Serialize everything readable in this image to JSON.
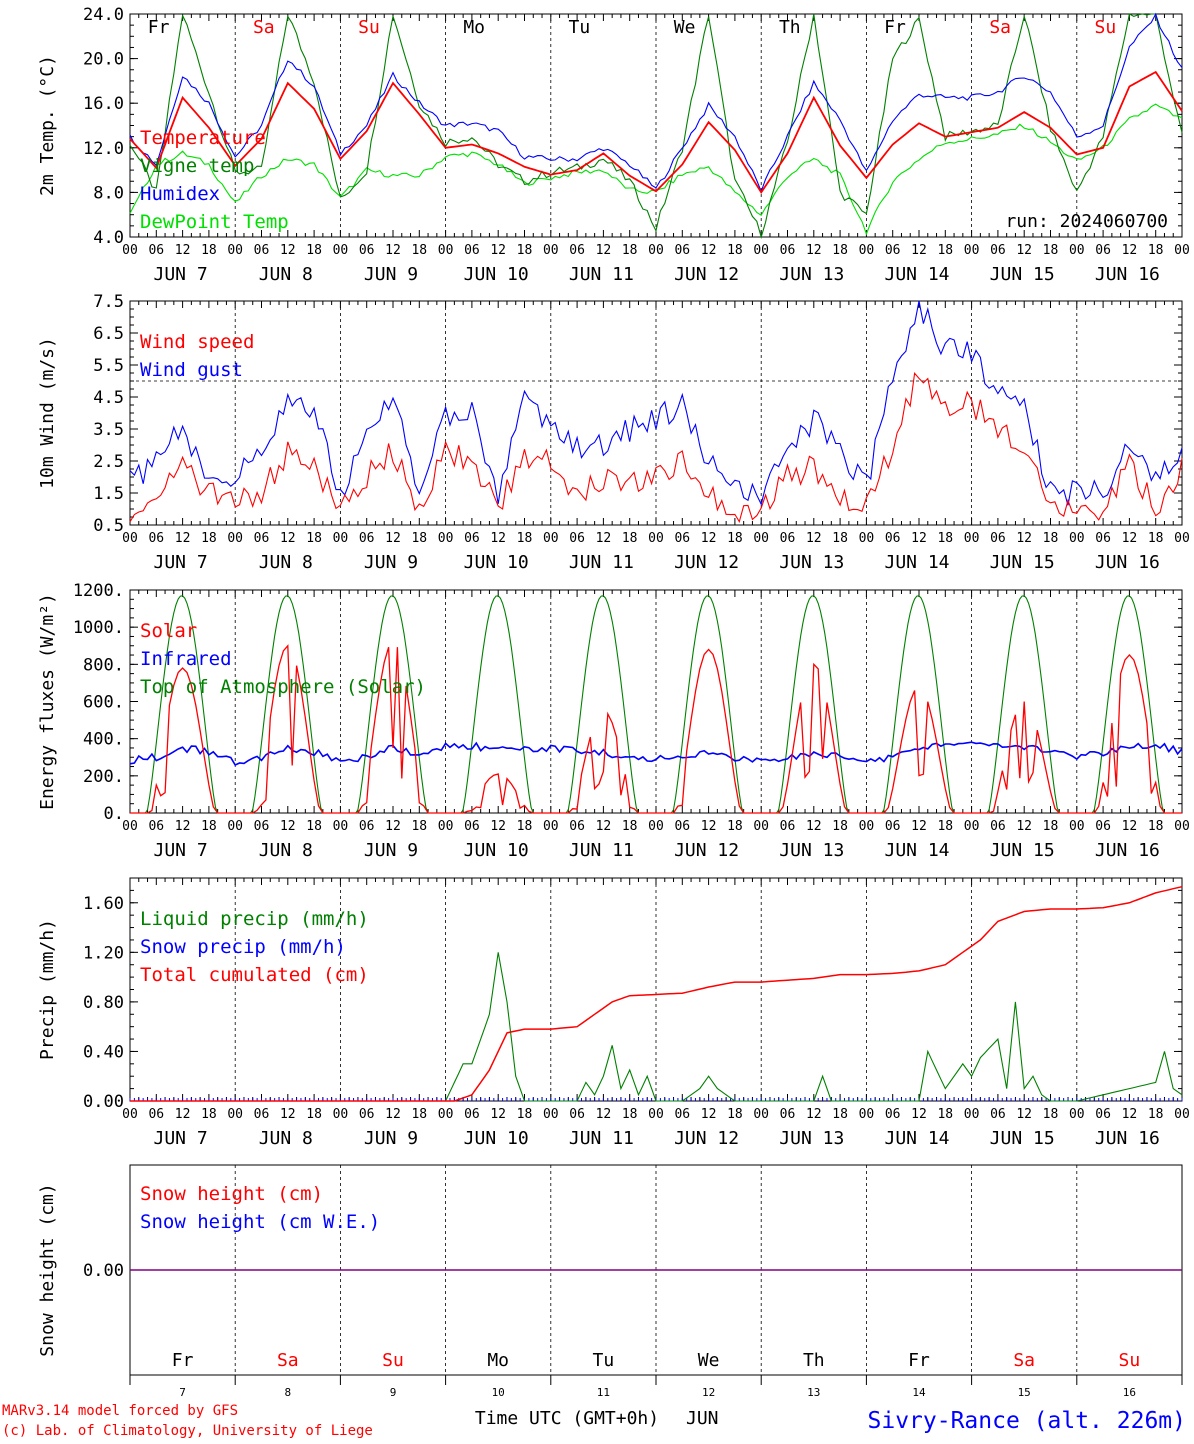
{
  "chart_data": [
    {
      "type": "line",
      "id": "temp",
      "ylabel": "2m Temp. (°C)",
      "ylim": [
        4.0,
        24.0
      ],
      "yticks": [
        "4.0",
        "8.0",
        "12.0",
        "16.0",
        "20.0",
        "24.0"
      ],
      "run_label": "run: 2024060700",
      "legend_placement": "left",
      "series": [
        {
          "name": "Temperature",
          "color": "#ff0000",
          "x_hours": [
            0,
            6,
            12,
            18,
            24,
            30,
            36,
            42,
            48,
            54,
            60,
            66,
            72,
            78,
            84,
            90,
            96,
            102,
            108,
            114,
            120,
            126,
            132,
            138,
            144,
            150,
            156,
            162,
            168,
            174,
            180,
            186,
            192,
            198,
            204,
            210,
            216,
            222,
            228,
            234,
            240
          ],
          "values": [
            12.8,
            10.2,
            16.5,
            13.8,
            10.4,
            12.8,
            17.8,
            15.5,
            11.0,
            13.5,
            17.8,
            15.0,
            12.0,
            12.3,
            11.5,
            10.3,
            9.6,
            10.0,
            11.5,
            9.5,
            8.1,
            10.5,
            14.3,
            11.8,
            8.0,
            11.5,
            16.5,
            12.2,
            9.3,
            12.3,
            14.2,
            13.0,
            13.4,
            13.8,
            15.2,
            13.8,
            11.4,
            12.0,
            17.5,
            18.8,
            15.3
          ]
        },
        {
          "name": "Vigne temp",
          "color": "#008000",
          "x_hours": [
            0,
            6,
            12,
            18,
            24,
            30,
            36,
            42,
            48,
            54,
            60,
            66,
            72,
            78,
            84,
            90,
            96,
            102,
            108,
            114,
            120,
            126,
            132,
            138,
            144,
            150,
            156,
            162,
            168,
            174,
            180,
            186,
            192,
            198,
            204,
            210,
            216,
            222,
            228,
            234,
            240
          ],
          "values": [
            12.5,
            8.0,
            24.0,
            17.0,
            9.8,
            10.0,
            24.0,
            18.0,
            7.3,
            10.0,
            24.0,
            16.0,
            12.5,
            13.0,
            10.5,
            9.0,
            9.8,
            10.2,
            11.0,
            9.0,
            4.8,
            12.0,
            24.0,
            9.0,
            4.3,
            12.5,
            24.0,
            8.0,
            6.0,
            20.0,
            23.5,
            13.0,
            13.5,
            14.0,
            24.0,
            13.8,
            8.0,
            13.0,
            24.0,
            24.0,
            13.0
          ]
        },
        {
          "name": "Humidex",
          "color": "#0000ff",
          "x_hours": [
            0,
            6,
            12,
            18,
            24,
            30,
            36,
            42,
            48,
            54,
            60,
            66,
            72,
            78,
            84,
            90,
            96,
            102,
            108,
            114,
            120,
            126,
            132,
            138,
            144,
            150,
            156,
            162,
            168,
            174,
            180,
            186,
            192,
            198,
            204,
            210,
            216,
            222,
            228,
            234,
            240
          ],
          "values": [
            13.0,
            10.5,
            18.5,
            16.0,
            11.2,
            14.0,
            20.0,
            17.5,
            11.5,
            14.0,
            18.5,
            16.0,
            14.0,
            14.2,
            13.5,
            11.2,
            11.0,
            11.0,
            12.0,
            10.5,
            8.3,
            12.0,
            15.8,
            13.0,
            8.2,
            13.0,
            17.8,
            14.5,
            9.8,
            14.5,
            16.8,
            16.5,
            16.5,
            17.0,
            18.5,
            17.0,
            13.0,
            14.0,
            21.0,
            23.8,
            19.0
          ]
        },
        {
          "name": "DewPoint Temp",
          "color": "#00e000",
          "x_hours": [
            0,
            6,
            12,
            18,
            24,
            30,
            36,
            42,
            48,
            54,
            60,
            66,
            72,
            78,
            84,
            90,
            96,
            102,
            108,
            114,
            120,
            126,
            132,
            138,
            144,
            150,
            156,
            162,
            168,
            174,
            180,
            186,
            192,
            198,
            204,
            210,
            216,
            222,
            228,
            234,
            240
          ],
          "values": [
            6.0,
            10.5,
            11.5,
            10.5,
            7.0,
            9.5,
            11.0,
            10.5,
            7.5,
            10.0,
            9.5,
            9.5,
            11.2,
            11.5,
            10.5,
            8.8,
            9.3,
            9.8,
            10.0,
            8.2,
            8.0,
            9.6,
            10.3,
            8.0,
            6.0,
            9.5,
            11.0,
            9.5,
            4.5,
            9.0,
            11.0,
            12.5,
            12.8,
            13.2,
            14.0,
            12.5,
            10.8,
            12.0,
            14.5,
            15.8,
            14.5
          ]
        }
      ]
    },
    {
      "type": "line",
      "id": "wind",
      "ylabel": "10m Wind (m/s)",
      "ylim": [
        0.5,
        7.5
      ],
      "yticks": [
        "0.5",
        "1.5",
        "2.5",
        "3.5",
        "4.5",
        "5.5",
        "6.5",
        "7.5"
      ],
      "reference_line": 5.0,
      "legend_placement": "left",
      "series": [
        {
          "name": "Wind speed",
          "color": "#ff0000",
          "x_hours": [
            0,
            6,
            12,
            18,
            24,
            30,
            36,
            42,
            48,
            54,
            60,
            66,
            72,
            78,
            84,
            90,
            96,
            102,
            108,
            114,
            120,
            126,
            132,
            138,
            144,
            150,
            156,
            162,
            168,
            174,
            180,
            186,
            192,
            198,
            204,
            210,
            216,
            222,
            228,
            234,
            240
          ],
          "values": [
            1.0,
            1.5,
            2.3,
            1.5,
            1.2,
            1.5,
            2.8,
            2.3,
            1.0,
            2.0,
            2.8,
            1.0,
            2.7,
            2.5,
            1.0,
            2.7,
            2.5,
            1.5,
            2.0,
            1.9,
            2.0,
            2.5,
            1.5,
            1.0,
            1.0,
            2.0,
            2.3,
            1.5,
            1.0,
            3.0,
            5.3,
            4.2,
            4.3,
            3.5,
            3.0,
            1.0,
            1.0,
            1.0,
            2.3,
            1.0,
            2.3
          ]
        },
        {
          "name": "Wind gust",
          "color": "#0000ff",
          "x_hours": [
            0,
            6,
            12,
            18,
            24,
            30,
            36,
            42,
            48,
            54,
            60,
            66,
            72,
            78,
            84,
            90,
            96,
            102,
            108,
            114,
            120,
            126,
            132,
            138,
            144,
            150,
            156,
            162,
            168,
            174,
            180,
            186,
            192,
            198,
            204,
            210,
            216,
            222,
            228,
            234,
            240
          ],
          "values": [
            1.8,
            2.5,
            3.5,
            2.0,
            1.8,
            3.0,
            4.3,
            4.0,
            1.5,
            3.5,
            4.5,
            1.5,
            4.0,
            4.0,
            1.5,
            4.5,
            3.5,
            3.0,
            3.0,
            3.5,
            3.8,
            4.3,
            2.5,
            1.5,
            1.5,
            2.8,
            3.8,
            2.8,
            1.8,
            5.0,
            7.3,
            6.0,
            5.8,
            4.8,
            4.3,
            1.5,
            1.5,
            1.5,
            3.0,
            2.0,
            3.0
          ]
        }
      ]
    },
    {
      "type": "line",
      "id": "energy",
      "ylabel": "Energy fluxes (W/m²)",
      "ylim": [
        0,
        1200
      ],
      "yticks": [
        "0.",
        "200.",
        "400.",
        "600.",
        "800.",
        "1000.",
        "1200."
      ],
      "legend_placement": "left",
      "series": [
        {
          "name": "Solar",
          "color": "#ff0000",
          "daily_peaks": [
            780,
            900,
            920,
            210,
            550,
            880,
            800,
            680,
            600,
            850
          ]
        },
        {
          "name": "Infrared",
          "color": "#0000ff",
          "x_hours": [
            0,
            6,
            12,
            18,
            24,
            30,
            36,
            42,
            48,
            54,
            60,
            66,
            72,
            78,
            84,
            90,
            96,
            102,
            108,
            114,
            120,
            126,
            132,
            138,
            144,
            150,
            156,
            162,
            168,
            174,
            180,
            186,
            192,
            198,
            204,
            210,
            216,
            222,
            228,
            234,
            240
          ],
          "values": [
            285,
            300,
            350,
            330,
            275,
            290,
            350,
            330,
            285,
            300,
            350,
            310,
            360,
            360,
            345,
            340,
            345,
            340,
            330,
            290,
            290,
            300,
            320,
            300,
            275,
            290,
            320,
            300,
            285,
            300,
            350,
            365,
            370,
            365,
            360,
            330,
            310,
            320,
            350,
            370,
            330
          ]
        },
        {
          "name": "Top of Atmosphere (Solar)",
          "color": "#008000",
          "daily_peak": 1170
        }
      ]
    },
    {
      "type": "line",
      "id": "precip",
      "ylabel": "Precip (mm/h)",
      "ylim": [
        0,
        1.8
      ],
      "yticks": [
        "0.00",
        "0.40",
        "0.80",
        "1.20",
        "1.60"
      ],
      "legend_placement": "left",
      "series": [
        {
          "name": "Liquid precip (mm/h)",
          "color": "#008000",
          "x_hours": [
            0,
            72,
            76,
            78,
            80,
            82,
            84,
            86,
            88,
            90,
            96,
            102,
            104,
            106,
            108,
            110,
            112,
            114,
            116,
            118,
            120,
            126,
            130,
            132,
            134,
            138,
            144,
            156,
            158,
            160,
            168,
            180,
            182,
            186,
            190,
            192,
            194,
            198,
            200,
            202,
            204,
            206,
            208,
            210,
            216,
            228,
            234,
            236,
            238,
            240
          ],
          "values": [
            0,
            0,
            0.3,
            0.3,
            0.5,
            0.7,
            1.2,
            0.8,
            0.2,
            0,
            0,
            0,
            0.15,
            0.05,
            0.2,
            0.45,
            0.1,
            0.25,
            0.05,
            0.2,
            0,
            0,
            0.1,
            0.2,
            0.1,
            0,
            0,
            0,
            0.2,
            0,
            0,
            0,
            0.4,
            0.1,
            0.3,
            0.2,
            0.35,
            0.5,
            0.1,
            0.8,
            0.1,
            0.2,
            0.05,
            0,
            0,
            0.1,
            0.15,
            0.4,
            0.1,
            0.05
          ]
        },
        {
          "name": "Snow precip (mm/h)",
          "color": "#0000ff",
          "x_hours": [
            0,
            240
          ],
          "values": [
            0,
            0
          ]
        },
        {
          "name": "Total cumulated (cm)",
          "color": "#ff0000",
          "x_hours": [
            0,
            74,
            78,
            82,
            86,
            90,
            96,
            102,
            106,
            110,
            114,
            120,
            126,
            132,
            138,
            144,
            156,
            162,
            168,
            174,
            180,
            186,
            190,
            194,
            198,
            204,
            210,
            216,
            222,
            228,
            234,
            240
          ],
          "values": [
            0,
            0,
            0.05,
            0.25,
            0.55,
            0.58,
            0.58,
            0.6,
            0.7,
            0.8,
            0.85,
            0.86,
            0.87,
            0.92,
            0.96,
            0.96,
            0.99,
            1.02,
            1.02,
            1.03,
            1.05,
            1.1,
            1.2,
            1.3,
            1.45,
            1.53,
            1.55,
            1.55,
            1.56,
            1.6,
            1.68,
            1.73
          ]
        }
      ]
    },
    {
      "type": "line",
      "id": "snow",
      "ylabel": "Snow height (cm)",
      "yticks": [
        "0.00"
      ],
      "legend_placement": "left",
      "series": [
        {
          "name": "Snow height (cm)",
          "color": "#ff0000",
          "x_hours": [
            0,
            240
          ],
          "values": [
            0,
            0
          ]
        },
        {
          "name": "Snow height (cm W.E.)",
          "color": "#0000ff",
          "x_hours": [
            0,
            240
          ],
          "values": [
            0,
            0
          ]
        }
      ]
    }
  ],
  "x_axis": {
    "hour_ticks": [
      "00",
      "06",
      "12",
      "18"
    ],
    "month": "JUN",
    "dates": [
      "7",
      "8",
      "9",
      "10",
      "11",
      "12",
      "13",
      "14",
      "15",
      "16"
    ],
    "weekdays": [
      "Fr",
      "Sa",
      "Su",
      "Mo",
      "Tu",
      "We",
      "Th",
      "Fr",
      "Sa",
      "Su"
    ],
    "weekend_color": "#ff0000",
    "weekday_color": "#000000",
    "xlabel": "Time UTC (GMT+0h)",
    "month_label": "JUN"
  },
  "footer": {
    "model_line": "MARv3.14 model forced by GFS",
    "credit_line": "(c) Lab. of Climatology, University of Liege",
    "station": "Sivry-Rance (alt. 226m)",
    "model_color": "#ff0000",
    "station_color": "#0000ff"
  }
}
